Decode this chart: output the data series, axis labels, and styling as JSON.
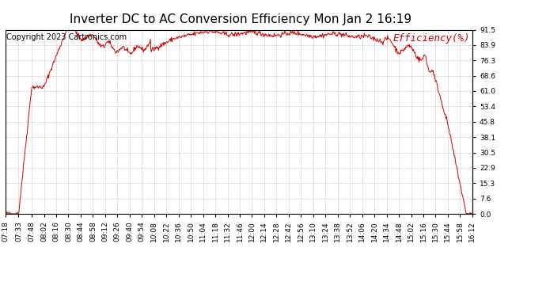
{
  "title": "Inverter DC to AC Conversion Efficiency Mon Jan 2 16:19",
  "copyright": "Copyright 2023 Cartronics.com",
  "legend_label": "Efficiency(%)",
  "line_color": "#cc0000",
  "background_color": "#ffffff",
  "grid_color": "#bbbbbb",
  "yticks": [
    0.0,
    7.6,
    15.3,
    22.9,
    30.5,
    38.1,
    45.8,
    53.4,
    61.0,
    68.6,
    76.3,
    83.9,
    91.5
  ],
  "ymin": 0.0,
  "ymax": 91.5,
  "xtick_labels": [
    "07:18",
    "07:33",
    "07:48",
    "08:02",
    "08:16",
    "08:30",
    "08:44",
    "08:58",
    "09:12",
    "09:26",
    "09:40",
    "09:54",
    "10:08",
    "10:22",
    "10:36",
    "10:50",
    "11:04",
    "11:18",
    "11:32",
    "11:46",
    "12:00",
    "12:14",
    "12:28",
    "12:42",
    "12:56",
    "13:10",
    "13:24",
    "13:38",
    "13:52",
    "14:06",
    "14:20",
    "14:34",
    "14:48",
    "15:02",
    "15:16",
    "15:30",
    "15:44",
    "15:58",
    "16:12"
  ],
  "title_fontsize": 11,
  "copyright_fontsize": 7,
  "legend_fontsize": 9,
  "tick_fontsize": 6.5
}
